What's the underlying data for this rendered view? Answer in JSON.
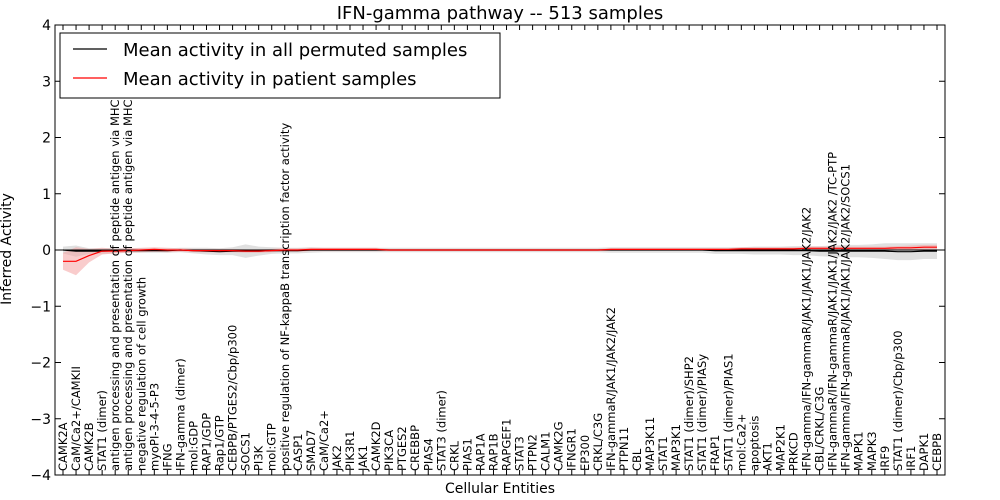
{
  "chart_data": {
    "type": "line",
    "title": "IFN-gamma pathway -- 513 samples",
    "xlabel": "Cellular Entities",
    "ylabel": "Inferred Activity",
    "ylim": [
      -4,
      4
    ],
    "yticks": [
      -4,
      -3,
      -2,
      -1,
      0,
      1,
      2,
      3,
      4
    ],
    "legend_position": "top-left",
    "categories": [
      "CAMK2A",
      "CaM/Ca2+/CAMKII",
      "CAMK2B",
      "STAT1 (dimer)",
      "antigen processing and presentation of peptide antigen via MHC class I",
      "antigen processing and presentation of peptide antigen via MHC class II",
      "negative regulation of cell growth",
      "myoPI-3-4-5-P3",
      "IFNG",
      "IFN-gamma (dimer)",
      "mol:GDP",
      "RAP1/GDP",
      "Rap1/GTP",
      "CEBPB/PTGES2/Cbp/p300",
      "SOCS1",
      "PI3K",
      "mol:GTP",
      "positive regulation of NF-kappaB transcription factor activity",
      "CASP1",
      "SMAD7",
      "CaM/Ca2+",
      "JAK2",
      "PIK3R1",
      "JAK1",
      "CAMK2D",
      "PIK3CA",
      "PTGES2",
      "CREBBP",
      "PIAS4",
      "STAT3 (dimer)",
      "CRKL",
      "PIAS1",
      "RAP1A",
      "RAP1B",
      "RAPGEF1",
      "STAT3",
      "PTPN2",
      "CALM1",
      "CAMK2G",
      "IFNGR1",
      "EP300",
      "CRKL/C3G",
      "IFN-gammaR/JAK1/JAK2/JAK2",
      "PTPN11",
      "CBL",
      "MAP3K11",
      "STAT1",
      "MAP3K1",
      "STAT1 (dimer)/SHP2",
      "STAT1 (dimer)/PIASy",
      "FRAP1",
      "STAT1 (dimer)/PIAS1",
      "mol:Ca2+",
      "apoptosis",
      "AKT1",
      "MAP2K1",
      "PRKCD",
      "IFN-gamma/IFN-gammaR/JAK1/JAK1/JAK2/JAK2",
      "CBL/CRKL/C3G",
      "IFN-gammaR/IFN-gammaR/JAK1/JAK1/JAK2/JAK2 /TC-PTP",
      "IFN-gamma/IFN-gammaR/JAK1/JAK1/JAK2/JAK2/SOCS1",
      "MAPK1",
      "MAPK3",
      "IRF9",
      "STAT1 (dimer)/Cbp/p300",
      "IRF1",
      "DAPK1",
      "CEBPB"
    ],
    "series": [
      {
        "name": "Mean activity in all permuted samples",
        "color": "#000000",
        "band_color": "#cccccc",
        "values": [
          0.0,
          -0.02,
          -0.02,
          -0.02,
          -0.01,
          -0.01,
          -0.01,
          -0.01,
          -0.01,
          0.0,
          -0.01,
          -0.02,
          -0.03,
          -0.02,
          -0.02,
          -0.02,
          -0.01,
          -0.01,
          -0.01,
          0.0,
          0.0,
          0.0,
          0.0,
          0.0,
          0.0,
          0.0,
          0.0,
          0.0,
          0.0,
          0.0,
          0.0,
          0.0,
          0.0,
          0.0,
          0.0,
          0.0,
          0.0,
          0.0,
          0.0,
          0.0,
          0.0,
          0.0,
          0.0,
          0.0,
          0.0,
          0.0,
          0.0,
          0.0,
          0.0,
          0.0,
          -0.01,
          -0.01,
          -0.01,
          -0.01,
          -0.01,
          -0.01,
          -0.01,
          -0.01,
          -0.02,
          -0.02,
          -0.02,
          -0.02,
          -0.02,
          -0.02,
          -0.03,
          -0.03,
          -0.02,
          -0.02
        ],
        "spread": [
          0.06,
          0.1,
          0.05,
          0.05,
          0.05,
          0.04,
          0.04,
          0.04,
          0.04,
          0.04,
          0.05,
          0.06,
          0.06,
          0.07,
          0.12,
          0.08,
          0.06,
          0.05,
          0.05,
          0.05,
          0.04,
          0.04,
          0.04,
          0.04,
          0.04,
          0.04,
          0.04,
          0.04,
          0.04,
          0.04,
          0.04,
          0.04,
          0.04,
          0.04,
          0.04,
          0.04,
          0.04,
          0.04,
          0.04,
          0.04,
          0.04,
          0.04,
          0.05,
          0.05,
          0.05,
          0.05,
          0.05,
          0.05,
          0.05,
          0.05,
          0.06,
          0.06,
          0.06,
          0.07,
          0.07,
          0.07,
          0.08,
          0.08,
          0.09,
          0.1,
          0.11,
          0.11,
          0.12,
          0.14,
          0.15,
          0.15,
          0.14,
          0.14
        ]
      },
      {
        "name": "Mean activity in patient samples",
        "color": "#ff0000",
        "band_color": "#f4a3a3",
        "values": [
          -0.2,
          -0.2,
          -0.1,
          -0.02,
          -0.02,
          -0.01,
          0.0,
          0.01,
          0.0,
          0.0,
          -0.01,
          -0.01,
          -0.01,
          -0.01,
          -0.02,
          -0.02,
          -0.01,
          0.0,
          0.0,
          0.01,
          0.01,
          0.01,
          0.01,
          0.01,
          0.01,
          0.0,
          0.0,
          0.0,
          0.0,
          0.0,
          0.0,
          0.0,
          0.0,
          0.0,
          0.0,
          0.0,
          0.0,
          0.0,
          0.0,
          0.0,
          0.0,
          0.0,
          0.01,
          0.01,
          0.01,
          0.01,
          0.01,
          0.01,
          0.01,
          0.01,
          0.01,
          0.01,
          0.02,
          0.02,
          0.02,
          0.02,
          0.02,
          0.03,
          0.03,
          0.03,
          0.03,
          0.03,
          0.03,
          0.03,
          0.04,
          0.04,
          0.05,
          0.05
        ],
        "spread": [
          0.15,
          0.25,
          0.12,
          0.06,
          0.04,
          0.04,
          0.04,
          0.04,
          0.04,
          0.03,
          0.03,
          0.03,
          0.03,
          0.03,
          0.03,
          0.03,
          0.03,
          0.03,
          0.03,
          0.03,
          0.03,
          0.03,
          0.03,
          0.03,
          0.03,
          0.02,
          0.02,
          0.02,
          0.02,
          0.02,
          0.02,
          0.02,
          0.02,
          0.02,
          0.02,
          0.02,
          0.02,
          0.02,
          0.02,
          0.02,
          0.02,
          0.02,
          0.02,
          0.02,
          0.02,
          0.02,
          0.02,
          0.02,
          0.02,
          0.02,
          0.02,
          0.02,
          0.03,
          0.03,
          0.03,
          0.03,
          0.03,
          0.03,
          0.03,
          0.03,
          0.03,
          0.03,
          0.03,
          0.03,
          0.03,
          0.04,
          0.04,
          0.04
        ]
      }
    ]
  }
}
